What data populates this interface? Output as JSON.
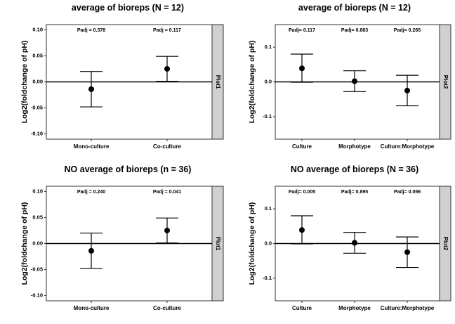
{
  "chart_data": [
    {
      "type": "scatter",
      "title": "average of bioreps (N = 12)",
      "ylabel": "Log2(foldchange of pH)",
      "ylim": [
        -0.11,
        0.11
      ],
      "yticks": [
        -0.1,
        -0.05,
        0.0,
        0.05,
        0.1
      ],
      "ytick_labels": [
        "-0.10",
        "-0.05",
        "0.00",
        "0.05",
        "0.10"
      ],
      "categories": [
        "Mono-culture",
        "Co-culture"
      ],
      "values": [
        -0.014,
        0.025
      ],
      "error_low": [
        -0.048,
        0.001
      ],
      "error_high": [
        0.02,
        0.049
      ],
      "annotations": [
        "Padj = 0.378",
        "Padj = 0.117"
      ],
      "strip": "Plot1",
      "hline": 0
    },
    {
      "type": "scatter",
      "title": "average of bioreps (N = 12)",
      "ylabel": "Log2(foldchange of pH)",
      "ylim": [
        -0.165,
        0.165
      ],
      "yticks": [
        -0.1,
        0.0,
        0.1
      ],
      "ytick_labels": [
        "-0.1",
        "0.0",
        "0.1"
      ],
      "categories": [
        "Culture",
        "Morphotype",
        "Culture:Morphotype"
      ],
      "values": [
        0.039,
        0.002,
        -0.025
      ],
      "error_low": [
        -0.001,
        -0.028,
        -0.069
      ],
      "error_high": [
        0.08,
        0.032,
        0.019
      ],
      "annotations": [
        "Padj= 0.117",
        "Padj= 0.883",
        "Padj= 0.265"
      ],
      "strip": "Plot2",
      "hline": 0
    },
    {
      "type": "scatter",
      "title": "NO average of bioreps (n = 36)",
      "ylabel": "Log2(foldchange of pH)",
      "ylim": [
        -0.11,
        0.11
      ],
      "yticks": [
        -0.1,
        -0.05,
        0.0,
        0.05,
        0.1
      ],
      "ytick_labels": [
        "-0.10",
        "-0.05",
        "0.00",
        "0.05",
        "0.10"
      ],
      "categories": [
        "Mono-culture",
        "Co-culture"
      ],
      "values": [
        -0.014,
        0.025
      ],
      "error_low": [
        -0.048,
        0.001
      ],
      "error_high": [
        0.02,
        0.049
      ],
      "annotations": [
        "Padj = 0.240",
        "Padj = 0.041"
      ],
      "strip": "Plot1",
      "hline": 0
    },
    {
      "type": "scatter",
      "title": "NO average of bioreps (N = 36)",
      "ylabel": "Log2(foldchange of pH)",
      "ylim": [
        -0.165,
        0.165
      ],
      "yticks": [
        -0.1,
        0.0,
        0.1
      ],
      "ytick_labels": [
        "-0.1",
        "0.0",
        "0.1"
      ],
      "categories": [
        "Culture",
        "Morphotype",
        "Culture:Morphotype"
      ],
      "values": [
        0.039,
        0.002,
        -0.025
      ],
      "error_low": [
        -0.001,
        -0.028,
        -0.069
      ],
      "error_high": [
        0.08,
        0.032,
        0.019
      ],
      "annotations": [
        "Padj= 0.005",
        "Padj= 0.895",
        "Padj= 0.056"
      ],
      "strip": "Plot2",
      "hline": 0
    }
  ]
}
